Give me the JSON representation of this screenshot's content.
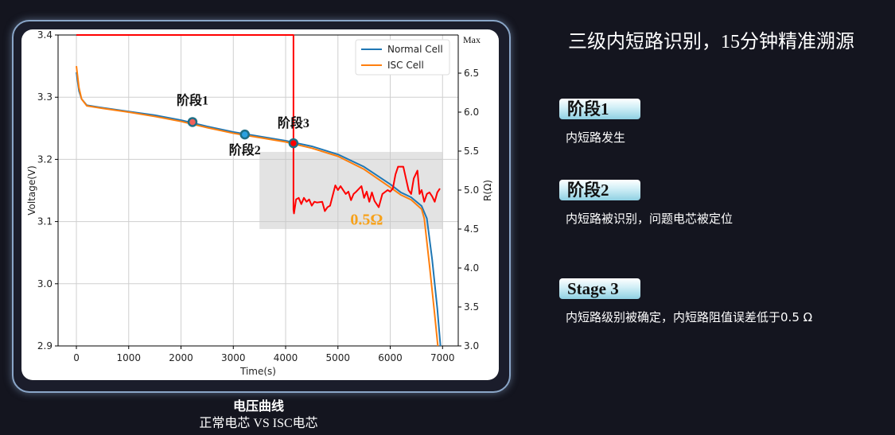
{
  "slide": {
    "title": "三级内短路识别，15分钟精准溯源",
    "caption_title": "电压曲线",
    "caption_subtitle": "正常电芯 VS ISC电芯",
    "stages": [
      {
        "label": "阶段1",
        "description": "内短路发生"
      },
      {
        "label": "阶段2",
        "description": "内短路被识别，问题电芯被定位"
      },
      {
        "label": "Stage 3",
        "description": "内短路级别被确定，内短路阻值误差低于0.5 Ω"
      }
    ]
  },
  "chart_data": {
    "type": "line",
    "xlabel": "Time(s)",
    "ylabel": "Voltage(V)",
    "y2label": "R(Ω)",
    "xlim": [
      -350,
      7300
    ],
    "ylim": [
      2.9,
      3.4
    ],
    "y2lim": [
      3.0,
      6.99
    ],
    "x_ticks": [
      0,
      1000,
      2000,
      3000,
      4000,
      5000,
      6000,
      7000
    ],
    "y_ticks": [
      "2.9",
      "3.0",
      "3.1",
      "3.2",
      "3.3",
      "3.4"
    ],
    "y2_ticks": [
      "3.0",
      "3.5",
      "4.0",
      "4.5",
      "5.0",
      "5.5",
      "6.0",
      "6.5"
    ],
    "y2_max_label": "Max",
    "grid": true,
    "legend_position": "top-right",
    "colors": {
      "normal": "#1f77b4",
      "isc": "#ff7f0e",
      "resistance": "#ff0000",
      "annotation": "#f7a11a"
    },
    "series": [
      {
        "name": "Normal Cell",
        "axis": "left",
        "x": [
          0,
          50,
          100,
          200,
          500,
          1000,
          1500,
          2000,
          2500,
          3000,
          3500,
          4000,
          4500,
          5000,
          5500,
          6000,
          6200,
          6400,
          6600,
          6700,
          6800,
          6900,
          6960
        ],
        "y": [
          3.34,
          3.31,
          3.297,
          3.287,
          3.283,
          3.277,
          3.271,
          3.263,
          3.253,
          3.244,
          3.237,
          3.23,
          3.221,
          3.208,
          3.188,
          3.16,
          3.147,
          3.139,
          3.125,
          3.105,
          3.04,
          2.96,
          2.9
        ]
      },
      {
        "name": "ISC Cell",
        "axis": "left",
        "x": [
          0,
          50,
          100,
          200,
          500,
          1000,
          1500,
          2000,
          2500,
          3000,
          3500,
          4000,
          4500,
          5000,
          5500,
          6000,
          6200,
          6400,
          6600,
          6650,
          6750,
          6850,
          6910
        ],
        "y": [
          3.35,
          3.315,
          3.297,
          3.286,
          3.282,
          3.276,
          3.269,
          3.261,
          3.251,
          3.242,
          3.235,
          3.228,
          3.218,
          3.205,
          3.184,
          3.155,
          3.143,
          3.135,
          3.12,
          3.105,
          3.03,
          2.95,
          2.9
        ]
      },
      {
        "name": "",
        "axis": "right",
        "x": [
          4150,
          4160,
          4200,
          4250,
          4300,
          4350,
          4400,
          4450,
          4500,
          4550,
          4600,
          4700,
          4750,
          4800,
          4850,
          4950,
          5000,
          5050,
          5100,
          5150,
          5200,
          5250,
          5300,
          5350,
          5450,
          5500,
          5550,
          5600,
          5650,
          5700,
          5780,
          5850,
          5950,
          6000,
          6050,
          6100,
          6150,
          6250,
          6300,
          6350,
          6400,
          6450,
          6520,
          6560,
          6600,
          6650,
          6700,
          6750,
          6800,
          6850,
          6900,
          6950
        ],
        "y": [
          4.75,
          4.7,
          4.88,
          4.9,
          4.82,
          4.9,
          4.85,
          4.88,
          4.8,
          4.85,
          4.84,
          4.85,
          4.73,
          4.78,
          4.8,
          5.06,
          5.0,
          5.05,
          5.0,
          4.95,
          4.98,
          4.87,
          4.95,
          4.98,
          5.05,
          4.9,
          4.98,
          4.85,
          4.97,
          4.86,
          4.78,
          4.95,
          5.0,
          4.98,
          5.02,
          5.2,
          5.3,
          5.3,
          5.15,
          5.0,
          4.95,
          5.15,
          5.25,
          4.95,
          5.0,
          4.85,
          4.95,
          4.97,
          4.92,
          4.85,
          4.97,
          5.02
        ]
      }
    ],
    "resistance_before_detection": {
      "x_start": 0,
      "x_end": 4150,
      "level": "Max"
    },
    "markers": [
      {
        "label": "阶段1",
        "x": 2220,
        "y": 3.26,
        "fill": "#f0605a"
      },
      {
        "label": "阶段2",
        "x": 3220,
        "y": 3.24,
        "fill": "#2aa1e0"
      },
      {
        "label": "阶段3",
        "x": 4150,
        "y": 3.226,
        "fill": "#ff0000"
      }
    ],
    "highlight_box": {
      "x": [
        3500,
        7000
      ],
      "y": [
        3.088,
        3.212
      ]
    },
    "annotations": [
      {
        "text": "0.5Ω",
        "x": 5550,
        "y": 3.1
      }
    ]
  }
}
